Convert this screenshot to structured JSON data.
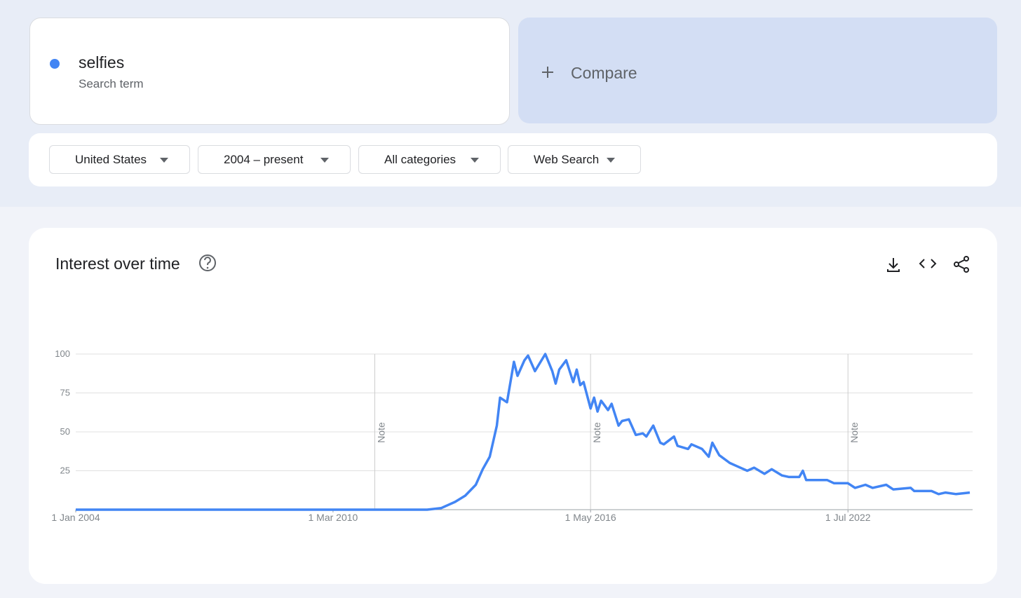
{
  "search_term_label": "Search term",
  "compare": "Compare",
  "filters": [
    "United States",
    "2004 – present",
    "All categories",
    "Web Search"
  ],
  "widget_title": "Interest over time",
  "chart_data": {
    "type": "line",
    "x": [
      "2004-01-01",
      "2012-06-01",
      "2012-10-01",
      "2013-02-01",
      "2013-05-01",
      "2013-08-01",
      "2013-10-01",
      "2013-12-01",
      "2014-02-01",
      "2014-03-01",
      "2014-05-01",
      "2014-07-01",
      "2014-08-01",
      "2014-10-01",
      "2014-11-01",
      "2015-01-01",
      "2015-04-01",
      "2015-06-01",
      "2015-07-01",
      "2015-08-01",
      "2015-10-01",
      "2015-12-01",
      "2016-01-01",
      "2016-02-01",
      "2016-03-01",
      "2016-05-01",
      "2016-06-01",
      "2016-07-01",
      "2016-08-01",
      "2016-10-01",
      "2016-11-01",
      "2017-01-01",
      "2017-02-01",
      "2017-04-01",
      "2017-06-01",
      "2017-08-01",
      "2017-09-01",
      "2017-11-01",
      "2018-01-01",
      "2018-02-01",
      "2018-05-01",
      "2018-06-01",
      "2018-09-01",
      "2018-10-01",
      "2019-01-01",
      "2019-03-01",
      "2019-04-01",
      "2019-06-01",
      "2019-09-01",
      "2019-11-01",
      "2020-02-01",
      "2020-04-01",
      "2020-07-01",
      "2020-09-01",
      "2020-12-01",
      "2021-02-01",
      "2021-05-01",
      "2021-06-01",
      "2021-07-01",
      "2021-10-01",
      "2022-01-01",
      "2022-03-01",
      "2022-07-01",
      "2022-09-01",
      "2022-12-01",
      "2023-02-01",
      "2023-06-01",
      "2023-08-01",
      "2024-01-01",
      "2024-02-01",
      "2024-07-01",
      "2024-09-01",
      "2024-11-01",
      "2025-02-01",
      "2025-06-01"
    ],
    "series": [
      {
        "name": "selfies",
        "color": "#4285f4",
        "values": [
          0,
          0,
          1,
          5,
          9,
          16,
          26,
          34,
          54,
          72,
          69,
          95,
          86,
          96,
          99,
          89,
          100,
          89,
          81,
          90,
          96,
          82,
          90,
          80,
          82,
          65,
          72,
          63,
          70,
          64,
          68,
          54,
          57,
          58,
          48,
          49,
          47,
          54,
          43,
          42,
          47,
          41,
          39,
          42,
          39,
          34,
          43,
          35,
          30,
          28,
          25,
          27,
          23,
          26,
          22,
          21,
          21,
          25,
          19,
          19,
          19,
          17,
          17,
          14,
          16,
          14,
          16,
          13,
          14,
          12,
          12,
          10,
          11,
          10,
          11
        ]
      }
    ],
    "xlim": [
      "2004-01-01",
      "2025-06-01"
    ],
    "xticks": [
      {
        "value": "2004-01-01",
        "label": "1 Jan 2004"
      },
      {
        "value": "2010-03-01",
        "label": "1 Mar 2010"
      },
      {
        "value": "2016-05-01",
        "label": "1 May 2016"
      },
      {
        "value": "2022-07-01",
        "label": "1 Jul 2022"
      }
    ],
    "ylim": [
      0,
      100
    ],
    "yticks": [
      25,
      50,
      75,
      100
    ],
    "grid": true,
    "notes": [
      {
        "x": "2011-03-01",
        "label": "Note"
      },
      {
        "x": "2016-05-01",
        "label": "Note"
      },
      {
        "x": "2022-07-01",
        "label": "Note"
      }
    ]
  }
}
